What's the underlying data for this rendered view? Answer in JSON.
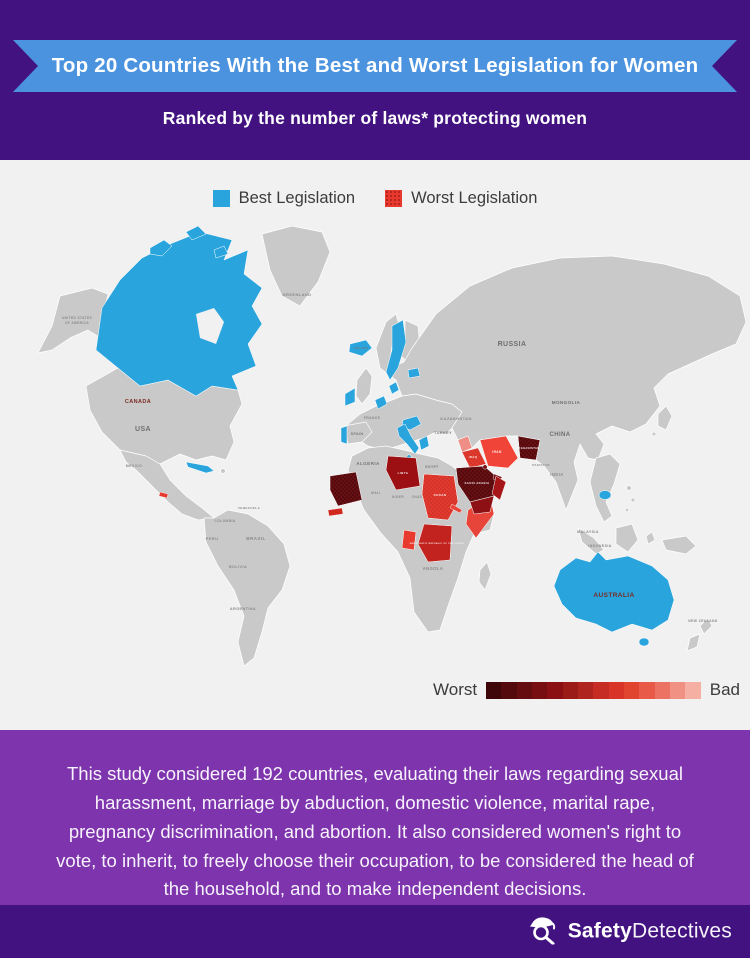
{
  "colors": {
    "dark_purple": "#421280",
    "mid_purple": "#7D34AD",
    "ribbon_blue": "#4B93DE",
    "best_blue": "#29A4DC",
    "worst_red": "#E8392F",
    "map_bg": "#F1F1F2",
    "land_gray": "#C9C9C9"
  },
  "header": {
    "title": "Top 20 Countries With the Best and Worst Legislation for Women",
    "subtitle": "Ranked by the number of laws* protecting women"
  },
  "legend": {
    "best_label": "Best Legislation",
    "worst_label": "Worst Legislation",
    "best_color": "#29A4DC",
    "worst_color": "#E8392F"
  },
  "scale": {
    "left_label": "Worst",
    "right_label": "Bad",
    "colors": [
      "#3F060A",
      "#54090D",
      "#650C10",
      "#760E12",
      "#8A1013",
      "#9A1B18",
      "#B02420",
      "#C62C24",
      "#D83428",
      "#E2452F",
      "#E85948",
      "#EC7263",
      "#F19184",
      "#F5AFA3"
    ]
  },
  "map": {
    "best_regions": [
      "Canada",
      "Cuba",
      "Iceland",
      "Ireland",
      "Portugal",
      "Denmark",
      "Netherlands",
      "Sweden",
      "Baltics",
      "Austria",
      "Italy",
      "Greece",
      "Cambodia",
      "Australia"
    ],
    "worst_regions": [
      "El Salvador",
      "Mauritania",
      "Senegal-Gambia",
      "Libya",
      "Sudan",
      "Eritrea",
      "Somalia",
      "Gabon",
      "DR Congo",
      "Syria",
      "Iraq",
      "Iran",
      "Kuwait",
      "Saudi Arabia",
      "Qatar-UAE",
      "Yemen",
      "Oman",
      "Afghanistan"
    ],
    "labels": [
      {
        "t": "UNITED STATES"
      },
      {
        "t": "OF AMERICA"
      },
      {
        "t": "CANADA"
      },
      {
        "t": "GREENLAND"
      },
      {
        "t": "USA"
      },
      {
        "t": "MEXICO"
      },
      {
        "t": "COLOMBIA"
      },
      {
        "t": "VENEZUELA"
      },
      {
        "t": "PERU"
      },
      {
        "t": "BRASIL"
      },
      {
        "t": "BOLIVIA"
      },
      {
        "t": "ARGENTINA"
      },
      {
        "t": "SPAIN"
      },
      {
        "t": "FRANCE"
      },
      {
        "t": "ALGERIA"
      },
      {
        "t": "LIBYA"
      },
      {
        "t": "SUDAN"
      },
      {
        "t": "ANGOLA"
      },
      {
        "t": "TURKEY"
      },
      {
        "t": "RUSSIA"
      },
      {
        "t": "KAZAKHSTAN"
      },
      {
        "t": "MONGOLIA"
      },
      {
        "t": "CHINA"
      },
      {
        "t": "INDIA"
      },
      {
        "t": "IRAN"
      },
      {
        "t": "IRAQ"
      },
      {
        "t": "SAUDI ARABIA"
      },
      {
        "t": "AFGHANISTAN"
      },
      {
        "t": "MALAYSIA"
      },
      {
        "t": "INDONESIA"
      },
      {
        "t": "AUSTRALIA"
      },
      {
        "t": "NEW ZEALAND"
      },
      {
        "t": "EGYPT"
      },
      {
        "t": "DEMOCRATIC REPUBLIC OF THE CONGO"
      },
      {
        "t": "ICELAND"
      },
      {
        "t": "CHAD"
      },
      {
        "t": "NIGER"
      },
      {
        "t": "MALI"
      },
      {
        "t": "PAKISTAN"
      }
    ]
  },
  "description": {
    "text": "This study considered 192 countries, evaluating their laws regarding sexual harassment, marriage by abduction, domestic violence, marital rape, pregnancy discrimination, and abortion. It also considered women's right to vote, to inherit, to freely choose their occupation, to be considered the head of the household, and to make independent decisions."
  },
  "footer": {
    "brand_bold": "Safety",
    "brand_light": "Detectives"
  }
}
